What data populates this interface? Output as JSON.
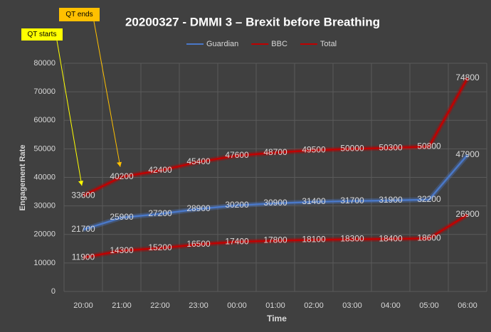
{
  "chart_data": {
    "type": "line",
    "title": "20200327 - DMMI 3 – Brexit before Breathing",
    "x_label": "Time",
    "y_label": "Engagement Rate",
    "categories": [
      "20:00",
      "21:00",
      "22:00",
      "23:00",
      "00:00",
      "01:00",
      "02:00",
      "03:00",
      "04:00",
      "05:00",
      "06:00"
    ],
    "series": [
      {
        "name": "Guardian",
        "color": "#4a78c8",
        "values": [
          21700,
          25900,
          27200,
          28900,
          30200,
          30900,
          31400,
          31700,
          31900,
          32200,
          47900
        ]
      },
      {
        "name": "BBC",
        "color": "#c00000",
        "values": [
          11900,
          14300,
          15200,
          16500,
          17400,
          17800,
          18100,
          18300,
          18400,
          18600,
          26900
        ]
      },
      {
        "name": "Total",
        "color": "#c00000",
        "values": [
          33600,
          40200,
          42400,
          45400,
          47600,
          48700,
          49500,
          50000,
          50300,
          50800,
          74800
        ]
      }
    ],
    "ylim": [
      0,
      80000
    ],
    "yticks": [
      0,
      10000,
      20000,
      30000,
      40000,
      50000,
      60000,
      70000,
      80000
    ],
    "grid": true,
    "legend": "top",
    "annotations": [
      {
        "text": "QT starts",
        "color": "#ffff00",
        "point": [
          0,
          2
        ]
      },
      {
        "text": "QT ends",
        "color": "#ffc000",
        "point": [
          1,
          2
        ]
      }
    ]
  }
}
